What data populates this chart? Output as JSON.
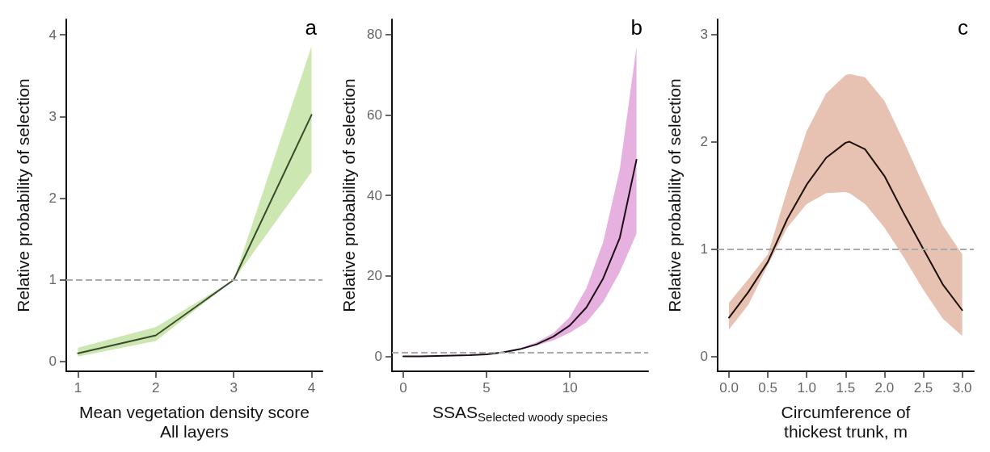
{
  "chart_data": [
    {
      "type": "line",
      "title": "a",
      "xlabel": "Mean vegetation density score\nAll layers",
      "ylabel": "Relative probability of selection",
      "xlim": [
        0.85,
        4.14
      ],
      "ylim": [
        -0.12,
        4.19
      ],
      "xticks": [
        1,
        2,
        3,
        4
      ],
      "yticks": [
        0,
        1,
        2,
        3,
        4
      ],
      "grid": false,
      "line_style": "solid",
      "series": [
        {
          "color": "#3b4a2c",
          "x": [
            1,
            2,
            3,
            4
          ],
          "values": [
            0.1,
            0.32,
            1.0,
            3.02
          ],
          "lower": [
            0.06,
            0.25,
            1.0,
            2.32
          ],
          "upper": [
            0.17,
            0.42,
            1.0,
            3.86
          ]
        }
      ],
      "ref_lines": [
        {
          "axis": "y",
          "value": 1,
          "color": "#aaaaaa",
          "line_style": "dashed"
        }
      ]
    },
    {
      "type": "line",
      "title": "b",
      "xlabel": "SSAS$_{Selected woody species}$",
      "ylabel": "Relative probability of selection",
      "xlim": [
        -0.68,
        14.7
      ],
      "ylim": [
        -3.7,
        83.8
      ],
      "xticks": [
        0,
        5,
        10
      ],
      "yticks": [
        0,
        20,
        40,
        60,
        80
      ],
      "grid": false,
      "line_style": "solid",
      "series": [
        {
          "color": "#1c0c1a",
          "x": [
            0,
            1,
            2,
            3,
            4,
            5,
            6,
            7,
            8,
            9,
            10,
            11,
            12,
            13,
            14
          ],
          "values": [
            0,
            0,
            0.1,
            0.2,
            0.3,
            0.5,
            1.0,
            1.8,
            3,
            4.9,
            7.7,
            12.2,
            19.4,
            29.5,
            48.9
          ],
          "lower": [
            0,
            0,
            0.1,
            0.2,
            0.3,
            0.5,
            0.9,
            1.6,
            2.7,
            4,
            5.9,
            8.5,
            13.5,
            21,
            30.5
          ],
          "upper": [
            0,
            0,
            0.1,
            0.2,
            0.3,
            0.5,
            1.1,
            2,
            3.5,
            5.8,
            9.8,
            17,
            28.4,
            46.6,
            77
          ]
        }
      ],
      "ref_lines": [
        {
          "axis": "y",
          "value": 1,
          "color": "#aaaaaa",
          "line_style": "dashed"
        }
      ]
    },
    {
      "type": "line",
      "title": "c",
      "xlabel": "Circumference of\nthickest trunk, m",
      "ylabel": "Relative probability of selection",
      "xlim": [
        -0.146,
        3.15
      ],
      "ylim": [
        -0.14,
        3.14
      ],
      "xticks": [
        {
          "value": 0,
          "label": "0.0"
        },
        0.5,
        {
          "value": 1,
          "label": "1.0"
        },
        1.5,
        {
          "value": 2,
          "label": "2.0"
        },
        2.5,
        {
          "value": 3,
          "label": "3.0"
        }
      ],
      "yticks": [
        0,
        1,
        2,
        3
      ],
      "grid": false,
      "line_style": "solid",
      "series": [
        {
          "color": "#1e100a",
          "x": [
            0,
            0.25,
            0.5,
            0.75,
            1.0,
            1.25,
            1.5,
            1.55,
            1.75,
            2.0,
            2.25,
            2.5,
            2.75,
            3.0
          ],
          "values": [
            0.36,
            0.6,
            0.88,
            1.28,
            1.6,
            1.85,
            1.99,
            2.0,
            1.93,
            1.68,
            1.33,
            1.0,
            0.67,
            0.43
          ],
          "lower": [
            0.25,
            0.48,
            0.85,
            1.2,
            1.42,
            1.52,
            1.53,
            1.52,
            1.42,
            1.2,
            0.92,
            0.62,
            0.35,
            0.19
          ],
          "upper": [
            0.5,
            0.72,
            0.95,
            1.55,
            2.1,
            2.45,
            2.62,
            2.63,
            2.6,
            2.38,
            2.0,
            1.6,
            1.22,
            0.95
          ]
        }
      ],
      "ref_lines": [
        {
          "axis": "y",
          "value": 1,
          "color": "#aaaaaa",
          "line_style": "dashed"
        }
      ]
    }
  ]
}
